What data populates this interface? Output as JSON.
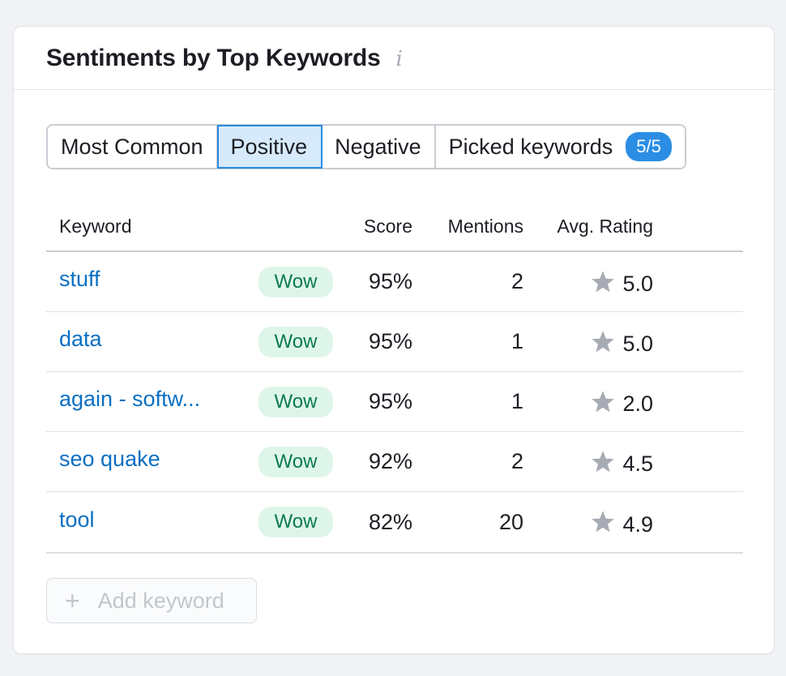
{
  "widget": {
    "title": "Sentiments by Top Keywords",
    "info_icon": "info-icon"
  },
  "tabs": [
    {
      "label": "Most Common",
      "active": false
    },
    {
      "label": "Positive",
      "active": true
    },
    {
      "label": "Negative",
      "active": false
    },
    {
      "label": "Picked keywords",
      "active": false,
      "count": "5/5"
    }
  ],
  "table": {
    "columns": {
      "keyword": "Keyword",
      "score": "Score",
      "mentions": "Mentions",
      "rating": "Avg. Rating"
    },
    "rows": [
      {
        "keyword": "stuff",
        "badge": "Wow",
        "score": "95%",
        "mentions": "2",
        "rating": "5.0"
      },
      {
        "keyword": "data",
        "badge": "Wow",
        "score": "95%",
        "mentions": "1",
        "rating": "5.0"
      },
      {
        "keyword": "again - softw...",
        "badge": "Wow",
        "score": "95%",
        "mentions": "1",
        "rating": "2.0"
      },
      {
        "keyword": "seo quake",
        "badge": "Wow",
        "score": "92%",
        "mentions": "2",
        "rating": "4.5"
      },
      {
        "keyword": "tool",
        "badge": "Wow",
        "score": "82%",
        "mentions": "20",
        "rating": "4.9"
      }
    ]
  },
  "add_button": {
    "label": "Add keyword",
    "icon": "plus-icon"
  },
  "colors": {
    "link": "#0a6fc2",
    "active_tab_bg": "#d6eafb",
    "active_tab_border": "#2a8be2",
    "count_badge": "#2b8ee4",
    "wow_badge_bg": "#def5ea",
    "wow_badge_text": "#0b7a4e",
    "star": "#a7abb4"
  }
}
